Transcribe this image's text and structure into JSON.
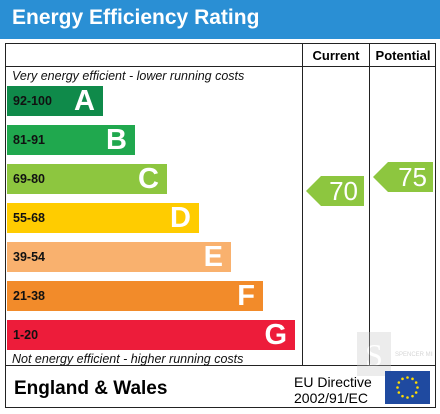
{
  "title": "Energy Efficiency Rating",
  "columns": {
    "current": "Current",
    "potential": "Potential"
  },
  "top_caption": "Very energy efficient - lower running costs",
  "bottom_caption": "Not energy efficient - higher running costs",
  "bands": [
    {
      "range": "92-100",
      "letter": "A",
      "color": "#0f8a4a"
    },
    {
      "range": "81-91",
      "letter": "B",
      "color": "#20a84e"
    },
    {
      "range": "69-80",
      "letter": "C",
      "color": "#8dc63f"
    },
    {
      "range": "55-68",
      "letter": "D",
      "color": "#ffcc00"
    },
    {
      "range": "39-54",
      "letter": "E",
      "color": "#f9b16e"
    },
    {
      "range": "21-38",
      "letter": "F",
      "color": "#f28b2a"
    },
    {
      "range": "1-20",
      "letter": "G",
      "color": "#ed1c3a"
    }
  ],
  "current": {
    "value": "70",
    "band": "C",
    "color": "#8dc63f"
  },
  "potential": {
    "value": "75",
    "band": "C",
    "color": "#8dc63f"
  },
  "footer": {
    "country": "England & Wales",
    "directive_line1": "EU Directive",
    "directive_line2": "2002/91/EC"
  },
  "icons": {
    "flag": "eu-flag-icon",
    "watermark": "agent-logo-watermark"
  }
}
